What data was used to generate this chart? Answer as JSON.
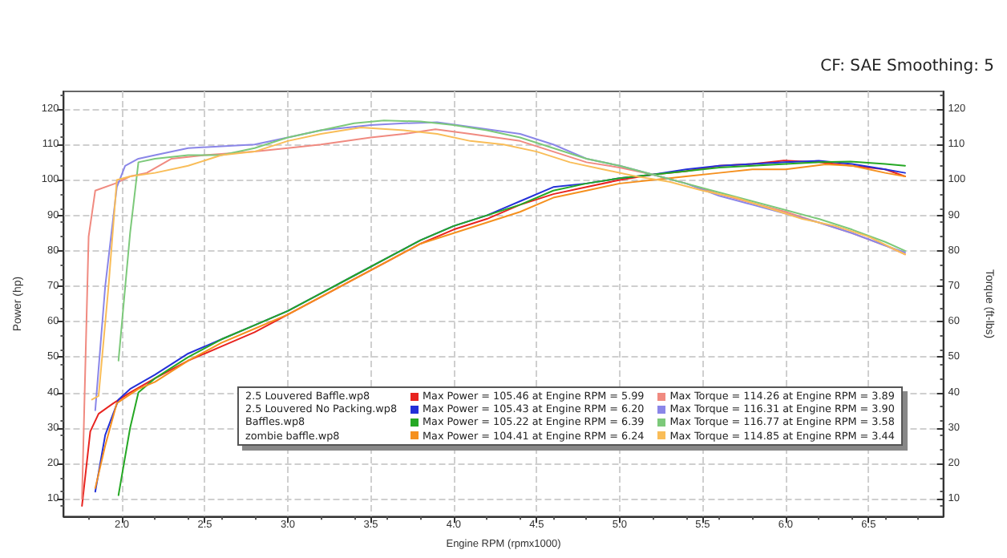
{
  "chart_data": {
    "type": "line",
    "subtitle": "CF: SAE Smoothing: 5",
    "xlabel": "Engine RPM (rpmx1000)",
    "ylabel": "Power (hp)",
    "y2label": "Torque (ft-lbs)",
    "annotations": [
      "2.5 Louvered Baffle.wp8",
      "2.5 Louvered No Packing.wp8",
      "Baffles.wp8",
      "zombie baffle.wp8"
    ],
    "xlim": [
      1.65,
      6.95
    ],
    "xticks": [
      {
        "value": 2,
        "label": "2.0"
      },
      {
        "value": 2.5,
        "label": "2.5"
      },
      {
        "value": 3,
        "label": "3.0"
      },
      {
        "value": 3.5,
        "label": "3.5"
      },
      {
        "value": 4,
        "label": "4.0"
      },
      {
        "value": 4.5,
        "label": "4.5"
      },
      {
        "value": 5,
        "label": "5.0"
      },
      {
        "value": 5.5,
        "label": "5.5"
      },
      {
        "value": 6,
        "label": "6.0"
      },
      {
        "value": 6.5,
        "label": "6.5"
      }
    ],
    "ylim": [
      5,
      125
    ],
    "yticks": [
      10,
      20,
      30,
      40,
      50,
      60,
      70,
      80,
      90,
      100,
      110,
      120
    ],
    "y2lim": [
      5,
      125
    ],
    "y2ticks": [
      10,
      20,
      30,
      40,
      50,
      60,
      70,
      80,
      90,
      100,
      110,
      120
    ],
    "grid": true,
    "legend": "bottom",
    "marker": "none",
    "line_style": "solid",
    "series": [
      {
        "name": "Max Power = 105.46 at Engine RPM = 5.99",
        "color": "#e8231f",
        "x": [
          1.76,
          1.81,
          1.86,
          1.95,
          2.05,
          2.2,
          2.4,
          2.6,
          2.8,
          3.0,
          3.2,
          3.4,
          3.6,
          3.8,
          4.0,
          4.2,
          4.4,
          4.6,
          4.8,
          5.0,
          5.2,
          5.4,
          5.6,
          5.8,
          5.99,
          6.2,
          6.4,
          6.6,
          6.72
        ],
        "values": [
          8,
          29,
          34,
          37,
          40,
          44,
          49,
          53,
          57,
          62,
          67,
          72,
          77,
          82,
          86,
          89,
          93,
          96,
          98,
          100,
          101.5,
          102.5,
          104,
          104.5,
          105.5,
          105,
          104,
          103,
          101
        ]
      },
      {
        "name": "Max Power = 105.43 at Engine RPM = 6.20",
        "color": "#2330d8",
        "x": [
          1.84,
          1.9,
          1.98,
          2.05,
          2.2,
          2.4,
          2.6,
          2.8,
          3.0,
          3.2,
          3.4,
          3.6,
          3.8,
          4.0,
          4.2,
          4.4,
          4.6,
          4.8,
          5.0,
          5.2,
          5.4,
          5.6,
          5.8,
          6.0,
          6.2,
          6.4,
          6.6,
          6.72
        ],
        "values": [
          12,
          28,
          38,
          41,
          45,
          51,
          55,
          59,
          63,
          68,
          73,
          78,
          83,
          87,
          90,
          94,
          98,
          99,
          100.5,
          101.5,
          103,
          104,
          104.5,
          105,
          105.4,
          104.5,
          103,
          102
        ]
      },
      {
        "name": "Max Power = 105.22 at Engine RPM = 6.39",
        "color": "#25a824",
        "x": [
          1.98,
          2.05,
          2.1,
          2.2,
          2.4,
          2.6,
          2.8,
          3.0,
          3.2,
          3.4,
          3.6,
          3.8,
          4.0,
          4.2,
          4.4,
          4.6,
          4.8,
          5.0,
          5.2,
          5.4,
          5.6,
          5.8,
          6.0,
          6.2,
          6.39,
          6.6,
          6.72
        ],
        "values": [
          11,
          30,
          40,
          44,
          50,
          55,
          59,
          63,
          68,
          73,
          78,
          83,
          87,
          90,
          93,
          97,
          99,
          100.5,
          101.5,
          102.5,
          103.5,
          104,
          104.5,
          105,
          105.2,
          104.5,
          104
        ]
      },
      {
        "name": "Max Power = 104.41 at Engine RPM = 6.24",
        "color": "#f5901e",
        "x": [
          1.84,
          1.9,
          1.97,
          2.1,
          2.2,
          2.4,
          2.6,
          2.8,
          3.0,
          3.4,
          3.8,
          4.0,
          4.2,
          4.4,
          4.6,
          4.8,
          5.0,
          5.2,
          5.4,
          5.6,
          5.8,
          6.0,
          6.24,
          6.4,
          6.6,
          6.72
        ],
        "values": [
          13,
          25,
          37,
          41,
          43,
          49,
          54,
          58,
          62,
          72,
          82,
          85,
          88,
          91,
          95,
          97,
          99,
          100,
          101,
          102,
          103,
          103,
          104.4,
          104,
          102,
          101
        ]
      },
      {
        "name": "Max Torque = 114.26 at Engine RPM = 3.89",
        "color": "#f08a80",
        "axis": "y2",
        "x": [
          1.76,
          1.8,
          1.84,
          1.96,
          2.05,
          2.15,
          2.3,
          2.5,
          2.8,
          3.0,
          3.2,
          3.5,
          3.7,
          3.89,
          4.1,
          4.4,
          4.6,
          4.8,
          5.0,
          5.2,
          5.4,
          5.6,
          5.8,
          6.0,
          6.2,
          6.4,
          6.6,
          6.72
        ],
        "values": [
          10,
          84,
          97,
          99,
          101,
          102,
          106,
          107,
          108,
          109,
          110,
          112,
          113,
          114.3,
          113,
          111,
          108,
          105,
          103.5,
          101.5,
          99,
          96,
          93.5,
          91,
          88,
          85,
          81.5,
          79
        ]
      },
      {
        "name": "Max Torque = 116.31 at Engine RPM = 3.90",
        "color": "#8a86e8",
        "axis": "y2",
        "x": [
          1.84,
          1.9,
          1.97,
          2.02,
          2.1,
          2.2,
          2.4,
          2.6,
          2.8,
          3.0,
          3.2,
          3.5,
          3.7,
          3.9,
          4.1,
          4.4,
          4.6,
          4.8,
          5.0,
          5.2,
          5.4,
          5.6,
          5.8,
          6.0,
          6.2,
          6.4,
          6.6,
          6.72
        ],
        "values": [
          35,
          70,
          98,
          104,
          106,
          107,
          109,
          109.5,
          110,
          112,
          114,
          115.5,
          116,
          116.3,
          115,
          113,
          110,
          106,
          104,
          101.5,
          99,
          95.5,
          93,
          90.5,
          88,
          85,
          81.5,
          79.5
        ]
      },
      {
        "name": "Max Torque = 116.77 at Engine RPM = 3.58",
        "color": "#7cc97a",
        "axis": "y2",
        "x": [
          1.98,
          2.05,
          2.1,
          2.2,
          2.4,
          2.6,
          2.8,
          3.0,
          3.2,
          3.4,
          3.58,
          3.8,
          4.0,
          4.2,
          4.4,
          4.6,
          4.8,
          5.0,
          5.2,
          5.4,
          5.6,
          5.8,
          6.0,
          6.2,
          6.4,
          6.6,
          6.72
        ],
        "values": [
          49,
          85,
          105,
          106,
          107,
          107,
          109,
          112,
          114,
          116,
          116.8,
          116.5,
          115.5,
          114,
          112,
          109,
          106,
          104,
          101.5,
          99,
          96.5,
          94,
          91.5,
          89,
          86,
          82.5,
          80
        ]
      },
      {
        "name": "Max Torque = 114.85 at Engine RPM = 3.44",
        "color": "#f9bd58",
        "axis": "y2",
        "x": [
          1.82,
          1.86,
          1.92,
          1.97,
          2.05,
          2.2,
          2.4,
          2.6,
          2.8,
          3.0,
          3.2,
          3.44,
          3.7,
          3.9,
          4.1,
          4.3,
          4.5,
          4.7,
          4.9,
          5.1,
          5.3,
          5.5,
          5.7,
          5.9,
          6.1,
          6.3,
          6.5,
          6.72
        ],
        "values": [
          38,
          39,
          70,
          100,
          101,
          102,
          104,
          107,
          108,
          111,
          113,
          114.8,
          114,
          113,
          111,
          110,
          108,
          105,
          103,
          101,
          99.5,
          97,
          95,
          92,
          89,
          87,
          84,
          79
        ]
      }
    ]
  }
}
